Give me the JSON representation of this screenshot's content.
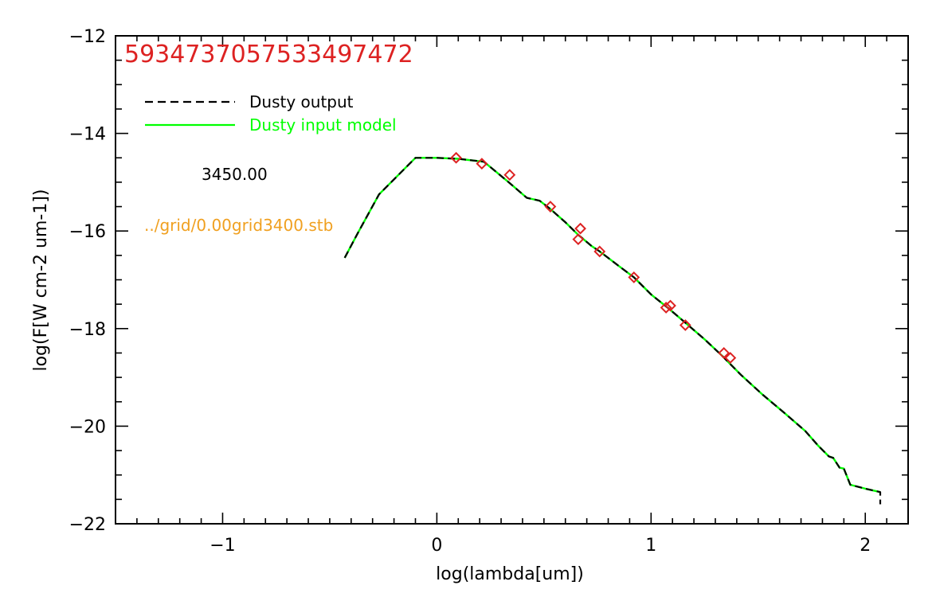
{
  "chart_data": {
    "type": "line",
    "title": "5934737057533497472",
    "xlabel": "log(lambda[um])",
    "ylabel": "log(F[W cm-2 um-1])",
    "xlim": [
      -1.5,
      2.2
    ],
    "ylim": [
      -22,
      -12
    ],
    "x_major_ticks": [
      -1,
      0,
      1,
      2
    ],
    "x_tick_labels": [
      "−1",
      "0",
      "1",
      "2"
    ],
    "x_minor_step": 0.1,
    "y_major_ticks": [
      -22,
      -20,
      -18,
      -16,
      -14,
      -12
    ],
    "y_tick_labels": [
      "−22",
      "−20",
      "−18",
      "−16",
      "−14",
      "−12"
    ],
    "y_minor_step": 0.5,
    "legend_position": "top-left",
    "series": [
      {
        "name": "Dusty output",
        "style": "dashed",
        "color": "#000000",
        "x": [
          -0.43,
          -0.37,
          -0.27,
          -0.1,
          0.0,
          0.1,
          0.22,
          0.33,
          0.42,
          0.48,
          0.53,
          0.6,
          0.66,
          0.68,
          0.72,
          0.76,
          0.85,
          0.92,
          1.0,
          1.08,
          1.16,
          1.25,
          1.33,
          1.42,
          1.52,
          1.62,
          1.72,
          1.78,
          1.83,
          1.85,
          1.88,
          1.9,
          1.93,
          2.0,
          2.07,
          2.07
        ],
        "y": [
          -16.55,
          -16.05,
          -15.25,
          -14.5,
          -14.5,
          -14.52,
          -14.58,
          -14.98,
          -15.32,
          -15.38,
          -15.55,
          -15.82,
          -16.08,
          -16.15,
          -16.3,
          -16.42,
          -16.72,
          -16.95,
          -17.3,
          -17.58,
          -17.88,
          -18.22,
          -18.55,
          -18.95,
          -19.35,
          -19.72,
          -20.1,
          -20.4,
          -20.62,
          -20.65,
          -20.85,
          -20.87,
          -21.2,
          -21.28,
          -21.35,
          -21.6
        ]
      },
      {
        "name": "Dusty input model",
        "style": "solid",
        "color": "#00ff00",
        "x": [
          -0.43,
          -0.37,
          -0.27,
          -0.1,
          0.0,
          0.1,
          0.22,
          0.33,
          0.42,
          0.48,
          0.53,
          0.6,
          0.66,
          0.68,
          0.72,
          0.76,
          0.85,
          0.92,
          1.0,
          1.08,
          1.16,
          1.25,
          1.33,
          1.42,
          1.52,
          1.62,
          1.72,
          1.78,
          1.83,
          1.85,
          1.88,
          1.9,
          1.93,
          2.0,
          2.07
        ],
        "y": [
          -16.55,
          -16.05,
          -15.25,
          -14.5,
          -14.5,
          -14.52,
          -14.58,
          -14.98,
          -15.32,
          -15.38,
          -15.55,
          -15.82,
          -16.08,
          -16.15,
          -16.3,
          -16.42,
          -16.72,
          -16.95,
          -17.3,
          -17.58,
          -17.88,
          -18.22,
          -18.55,
          -18.95,
          -19.35,
          -19.72,
          -20.1,
          -20.4,
          -20.62,
          -20.65,
          -20.85,
          -20.87,
          -21.2,
          -21.28,
          -21.35
        ]
      },
      {
        "name": "",
        "style": "markers",
        "marker": "diamond",
        "color": "#dd2222",
        "x": [
          0.09,
          0.21,
          0.34,
          0.53,
          0.66,
          0.67,
          0.76,
          0.92,
          1.07,
          1.09,
          1.16,
          1.34,
          1.37
        ],
        "y": [
          -14.5,
          -14.62,
          -14.85,
          -15.5,
          -16.17,
          -15.95,
          -16.42,
          -16.95,
          -17.57,
          -17.53,
          -17.93,
          -18.5,
          -18.6
        ]
      }
    ],
    "annotations": {
      "temperature": "3450.00",
      "grid_file": "../grid/0.00grid3400.stb"
    }
  },
  "colors": {
    "title": "#dd2222",
    "dusty_output": "#000000",
    "dusty_input": "#00ff00",
    "grid_file": "#f0a020",
    "markers": "#dd2222"
  }
}
